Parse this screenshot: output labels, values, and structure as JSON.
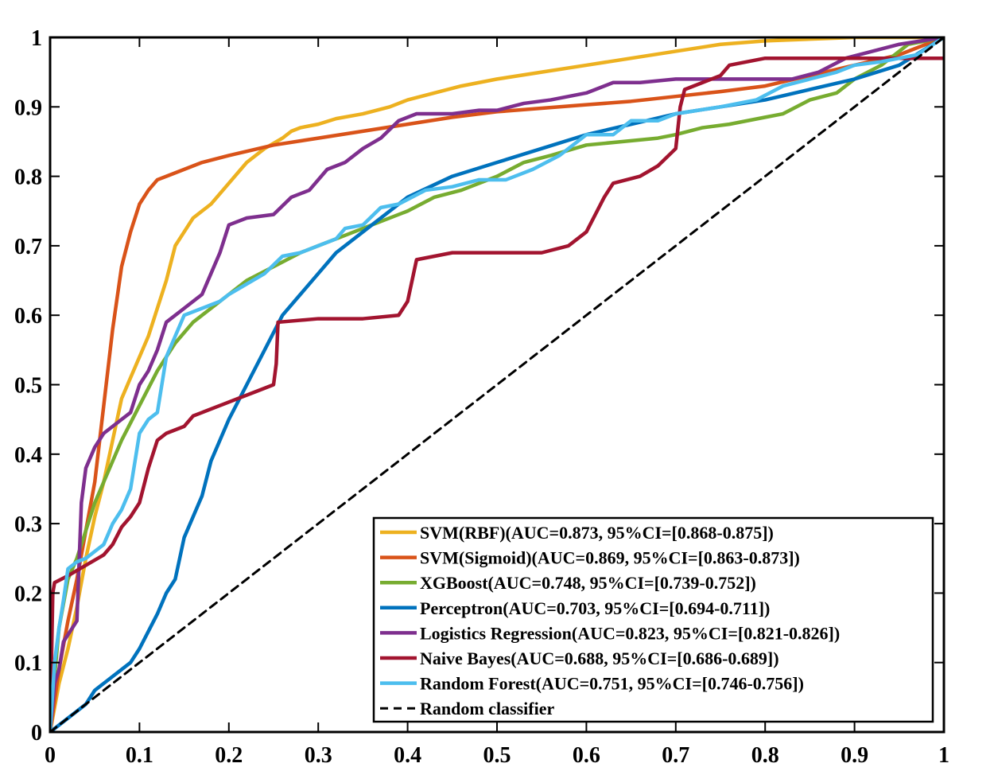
{
  "chart_data": {
    "type": "line",
    "title": "",
    "xlabel": "",
    "ylabel": "",
    "xlim": [
      0,
      1
    ],
    "ylim": [
      0,
      1
    ],
    "grid": false,
    "legend_position": "bottom-right",
    "x_ticks": [
      "0",
      "0.1",
      "0.2",
      "0.3",
      "0.4",
      "0.5",
      "0.6",
      "0.7",
      "0.8",
      "0.9",
      "1"
    ],
    "y_ticks": [
      "0",
      "0.1",
      "0.2",
      "0.3",
      "0.4",
      "0.5",
      "0.6",
      "0.7",
      "0.8",
      "0.9",
      "1"
    ],
    "series": [
      {
        "name": "SVM(RBF)(AUC=0.873, 95%CI=[0.868-0.875])",
        "color": "#EDB120",
        "dash": false,
        "points": [
          [
            0,
            0
          ],
          [
            0.01,
            0.07
          ],
          [
            0.02,
            0.12
          ],
          [
            0.03,
            0.18
          ],
          [
            0.04,
            0.25
          ],
          [
            0.05,
            0.31
          ],
          [
            0.06,
            0.36
          ],
          [
            0.07,
            0.42
          ],
          [
            0.08,
            0.48
          ],
          [
            0.09,
            0.51
          ],
          [
            0.1,
            0.54
          ],
          [
            0.11,
            0.57
          ],
          [
            0.12,
            0.61
          ],
          [
            0.13,
            0.65
          ],
          [
            0.14,
            0.7
          ],
          [
            0.15,
            0.72
          ],
          [
            0.16,
            0.74
          ],
          [
            0.18,
            0.76
          ],
          [
            0.2,
            0.79
          ],
          [
            0.22,
            0.82
          ],
          [
            0.24,
            0.84
          ],
          [
            0.26,
            0.855
          ],
          [
            0.27,
            0.865
          ],
          [
            0.28,
            0.87
          ],
          [
            0.3,
            0.875
          ],
          [
            0.32,
            0.883
          ],
          [
            0.35,
            0.89
          ],
          [
            0.38,
            0.9
          ],
          [
            0.4,
            0.91
          ],
          [
            0.43,
            0.92
          ],
          [
            0.46,
            0.93
          ],
          [
            0.5,
            0.94
          ],
          [
            0.55,
            0.95
          ],
          [
            0.6,
            0.96
          ],
          [
            0.65,
            0.97
          ],
          [
            0.7,
            0.98
          ],
          [
            0.75,
            0.99
          ],
          [
            0.8,
            0.995
          ],
          [
            0.9,
            1
          ],
          [
            1,
            1
          ]
        ]
      },
      {
        "name": "SVM(Sigmoid)(AUC=0.869, 95%CI=[0.863-0.873])",
        "color": "#D95319",
        "dash": false,
        "points": [
          [
            0,
            0
          ],
          [
            0.01,
            0.09
          ],
          [
            0.02,
            0.16
          ],
          [
            0.03,
            0.22
          ],
          [
            0.04,
            0.29
          ],
          [
            0.05,
            0.36
          ],
          [
            0.06,
            0.47
          ],
          [
            0.07,
            0.58
          ],
          [
            0.08,
            0.67
          ],
          [
            0.09,
            0.72
          ],
          [
            0.1,
            0.76
          ],
          [
            0.11,
            0.78
          ],
          [
            0.12,
            0.795
          ],
          [
            0.13,
            0.8
          ],
          [
            0.15,
            0.81
          ],
          [
            0.17,
            0.82
          ],
          [
            0.2,
            0.83
          ],
          [
            0.25,
            0.845
          ],
          [
            0.3,
            0.855
          ],
          [
            0.35,
            0.865
          ],
          [
            0.4,
            0.875
          ],
          [
            0.45,
            0.885
          ],
          [
            0.5,
            0.893
          ],
          [
            0.55,
            0.898
          ],
          [
            0.6,
            0.903
          ],
          [
            0.65,
            0.908
          ],
          [
            0.7,
            0.915
          ],
          [
            0.75,
            0.922
          ],
          [
            0.8,
            0.93
          ],
          [
            0.85,
            0.945
          ],
          [
            0.9,
            0.96
          ],
          [
            0.95,
            0.975
          ],
          [
            1,
            1
          ]
        ]
      },
      {
        "name": "XGBoost(AUC=0.748, 95%CI=[0.739-0.752])",
        "color": "#77AC30",
        "dash": false,
        "points": [
          [
            0,
            0
          ],
          [
            0.005,
            0.08
          ],
          [
            0.01,
            0.15
          ],
          [
            0.02,
            0.22
          ],
          [
            0.03,
            0.25
          ],
          [
            0.04,
            0.29
          ],
          [
            0.05,
            0.33
          ],
          [
            0.06,
            0.36
          ],
          [
            0.07,
            0.39
          ],
          [
            0.08,
            0.42
          ],
          [
            0.1,
            0.47
          ],
          [
            0.12,
            0.52
          ],
          [
            0.14,
            0.56
          ],
          [
            0.16,
            0.59
          ],
          [
            0.18,
            0.61
          ],
          [
            0.2,
            0.63
          ],
          [
            0.22,
            0.65
          ],
          [
            0.25,
            0.67
          ],
          [
            0.28,
            0.69
          ],
          [
            0.3,
            0.7
          ],
          [
            0.33,
            0.715
          ],
          [
            0.36,
            0.73
          ],
          [
            0.4,
            0.75
          ],
          [
            0.43,
            0.77
          ],
          [
            0.46,
            0.78
          ],
          [
            0.5,
            0.8
          ],
          [
            0.53,
            0.82
          ],
          [
            0.56,
            0.83
          ],
          [
            0.6,
            0.845
          ],
          [
            0.64,
            0.85
          ],
          [
            0.68,
            0.855
          ],
          [
            0.7,
            0.86
          ],
          [
            0.73,
            0.87
          ],
          [
            0.76,
            0.875
          ],
          [
            0.8,
            0.885
          ],
          [
            0.82,
            0.89
          ],
          [
            0.85,
            0.91
          ],
          [
            0.88,
            0.92
          ],
          [
            0.9,
            0.94
          ],
          [
            0.93,
            0.96
          ],
          [
            0.96,
            0.99
          ],
          [
            1,
            1
          ]
        ]
      },
      {
        "name": "Perceptron(AUC=0.703, 95%CI=[0.694-0.711])",
        "color": "#0072BD",
        "dash": false,
        "points": [
          [
            0,
            0
          ],
          [
            0.02,
            0.02
          ],
          [
            0.04,
            0.04
          ],
          [
            0.05,
            0.06
          ],
          [
            0.07,
            0.08
          ],
          [
            0.09,
            0.1
          ],
          [
            0.1,
            0.12
          ],
          [
            0.12,
            0.17
          ],
          [
            0.13,
            0.2
          ],
          [
            0.14,
            0.22
          ],
          [
            0.15,
            0.28
          ],
          [
            0.16,
            0.31
          ],
          [
            0.17,
            0.34
          ],
          [
            0.18,
            0.39
          ],
          [
            0.2,
            0.45
          ],
          [
            0.22,
            0.5
          ],
          [
            0.24,
            0.55
          ],
          [
            0.26,
            0.6
          ],
          [
            0.28,
            0.63
          ],
          [
            0.3,
            0.66
          ],
          [
            0.32,
            0.69
          ],
          [
            0.35,
            0.72
          ],
          [
            0.38,
            0.75
          ],
          [
            0.4,
            0.77
          ],
          [
            0.45,
            0.8
          ],
          [
            0.5,
            0.82
          ],
          [
            0.55,
            0.84
          ],
          [
            0.6,
            0.86
          ],
          [
            0.65,
            0.875
          ],
          [
            0.7,
            0.89
          ],
          [
            0.75,
            0.9
          ],
          [
            0.8,
            0.91
          ],
          [
            0.85,
            0.925
          ],
          [
            0.9,
            0.94
          ],
          [
            0.95,
            0.96
          ],
          [
            1,
            1
          ]
        ]
      },
      {
        "name": "Logistics Regression(AUC=0.823, 95%CI=[0.821-0.826])",
        "color": "#7E2F8E",
        "dash": false,
        "points": [
          [
            0,
            0
          ],
          [
            0.005,
            0.07
          ],
          [
            0.01,
            0.09
          ],
          [
            0.015,
            0.13
          ],
          [
            0.02,
            0.14
          ],
          [
            0.03,
            0.16
          ],
          [
            0.035,
            0.33
          ],
          [
            0.04,
            0.38
          ],
          [
            0.05,
            0.41
          ],
          [
            0.06,
            0.43
          ],
          [
            0.07,
            0.44
          ],
          [
            0.08,
            0.45
          ],
          [
            0.09,
            0.46
          ],
          [
            0.1,
            0.5
          ],
          [
            0.11,
            0.52
          ],
          [
            0.12,
            0.55
          ],
          [
            0.13,
            0.59
          ],
          [
            0.15,
            0.61
          ],
          [
            0.17,
            0.63
          ],
          [
            0.18,
            0.66
          ],
          [
            0.19,
            0.69
          ],
          [
            0.2,
            0.73
          ],
          [
            0.22,
            0.74
          ],
          [
            0.25,
            0.745
          ],
          [
            0.27,
            0.77
          ],
          [
            0.29,
            0.78
          ],
          [
            0.31,
            0.81
          ],
          [
            0.33,
            0.82
          ],
          [
            0.35,
            0.84
          ],
          [
            0.37,
            0.855
          ],
          [
            0.39,
            0.88
          ],
          [
            0.41,
            0.89
          ],
          [
            0.45,
            0.89
          ],
          [
            0.48,
            0.895
          ],
          [
            0.5,
            0.895
          ],
          [
            0.53,
            0.905
          ],
          [
            0.56,
            0.91
          ],
          [
            0.6,
            0.92
          ],
          [
            0.63,
            0.935
          ],
          [
            0.66,
            0.935
          ],
          [
            0.7,
            0.94
          ],
          [
            0.75,
            0.94
          ],
          [
            0.8,
            0.94
          ],
          [
            0.83,
            0.94
          ],
          [
            0.86,
            0.95
          ],
          [
            0.89,
            0.97
          ],
          [
            0.92,
            0.98
          ],
          [
            0.95,
            0.99
          ],
          [
            1,
            1
          ]
        ]
      },
      {
        "name": "Naive Bayes(AUC=0.688, 95%CI=[0.686-0.689])",
        "color": "#A2142F",
        "dash": false,
        "points": [
          [
            0,
            0
          ],
          [
            0.003,
            0.2
          ],
          [
            0.005,
            0.215
          ],
          [
            0.02,
            0.225
          ],
          [
            0.04,
            0.24
          ],
          [
            0.06,
            0.255
          ],
          [
            0.07,
            0.27
          ],
          [
            0.08,
            0.295
          ],
          [
            0.09,
            0.31
          ],
          [
            0.1,
            0.33
          ],
          [
            0.11,
            0.38
          ],
          [
            0.12,
            0.42
          ],
          [
            0.13,
            0.43
          ],
          [
            0.15,
            0.44
          ],
          [
            0.16,
            0.455
          ],
          [
            0.17,
            0.46
          ],
          [
            0.19,
            0.47
          ],
          [
            0.21,
            0.48
          ],
          [
            0.23,
            0.49
          ],
          [
            0.25,
            0.5
          ],
          [
            0.253,
            0.53
          ],
          [
            0.255,
            0.59
          ],
          [
            0.3,
            0.595
          ],
          [
            0.35,
            0.595
          ],
          [
            0.39,
            0.6
          ],
          [
            0.4,
            0.62
          ],
          [
            0.41,
            0.68
          ],
          [
            0.45,
            0.69
          ],
          [
            0.5,
            0.69
          ],
          [
            0.55,
            0.69
          ],
          [
            0.58,
            0.7
          ],
          [
            0.6,
            0.72
          ],
          [
            0.61,
            0.745
          ],
          [
            0.62,
            0.77
          ],
          [
            0.63,
            0.79
          ],
          [
            0.66,
            0.8
          ],
          [
            0.68,
            0.815
          ],
          [
            0.7,
            0.84
          ],
          [
            0.705,
            0.9
          ],
          [
            0.71,
            0.925
          ],
          [
            0.73,
            0.935
          ],
          [
            0.75,
            0.945
          ],
          [
            0.76,
            0.96
          ],
          [
            0.8,
            0.97
          ],
          [
            0.85,
            0.97
          ],
          [
            0.9,
            0.97
          ],
          [
            0.95,
            0.97
          ],
          [
            1,
            0.97
          ]
        ]
      },
      {
        "name": "Random Forest(AUC=0.751, 95%CI=[0.746-0.756])",
        "color": "#4DBEEE",
        "dash": false,
        "points": [
          [
            0,
            0
          ],
          [
            0.005,
            0.1
          ],
          [
            0.01,
            0.15
          ],
          [
            0.015,
            0.19
          ],
          [
            0.02,
            0.235
          ],
          [
            0.03,
            0.245
          ],
          [
            0.04,
            0.25
          ],
          [
            0.05,
            0.26
          ],
          [
            0.06,
            0.27
          ],
          [
            0.07,
            0.3
          ],
          [
            0.08,
            0.32
          ],
          [
            0.09,
            0.35
          ],
          [
            0.1,
            0.43
          ],
          [
            0.11,
            0.45
          ],
          [
            0.12,
            0.46
          ],
          [
            0.13,
            0.54
          ],
          [
            0.15,
            0.6
          ],
          [
            0.17,
            0.61
          ],
          [
            0.19,
            0.62
          ],
          [
            0.2,
            0.63
          ],
          [
            0.22,
            0.645
          ],
          [
            0.24,
            0.66
          ],
          [
            0.26,
            0.685
          ],
          [
            0.28,
            0.69
          ],
          [
            0.3,
            0.7
          ],
          [
            0.32,
            0.71
          ],
          [
            0.33,
            0.725
          ],
          [
            0.35,
            0.73
          ],
          [
            0.37,
            0.755
          ],
          [
            0.39,
            0.76
          ],
          [
            0.42,
            0.78
          ],
          [
            0.45,
            0.785
          ],
          [
            0.48,
            0.795
          ],
          [
            0.51,
            0.795
          ],
          [
            0.54,
            0.81
          ],
          [
            0.57,
            0.83
          ],
          [
            0.6,
            0.86
          ],
          [
            0.63,
            0.86
          ],
          [
            0.65,
            0.88
          ],
          [
            0.68,
            0.88
          ],
          [
            0.7,
            0.89
          ],
          [
            0.75,
            0.9
          ],
          [
            0.79,
            0.91
          ],
          [
            0.82,
            0.93
          ],
          [
            0.85,
            0.94
          ],
          [
            0.88,
            0.95
          ],
          [
            0.9,
            0.96
          ],
          [
            0.93,
            0.965
          ],
          [
            0.97,
            0.975
          ],
          [
            1,
            1
          ]
        ]
      },
      {
        "name": "Random classifier",
        "color": "#000000",
        "dash": true,
        "points": [
          [
            0,
            0
          ],
          [
            1,
            1
          ]
        ]
      }
    ]
  }
}
